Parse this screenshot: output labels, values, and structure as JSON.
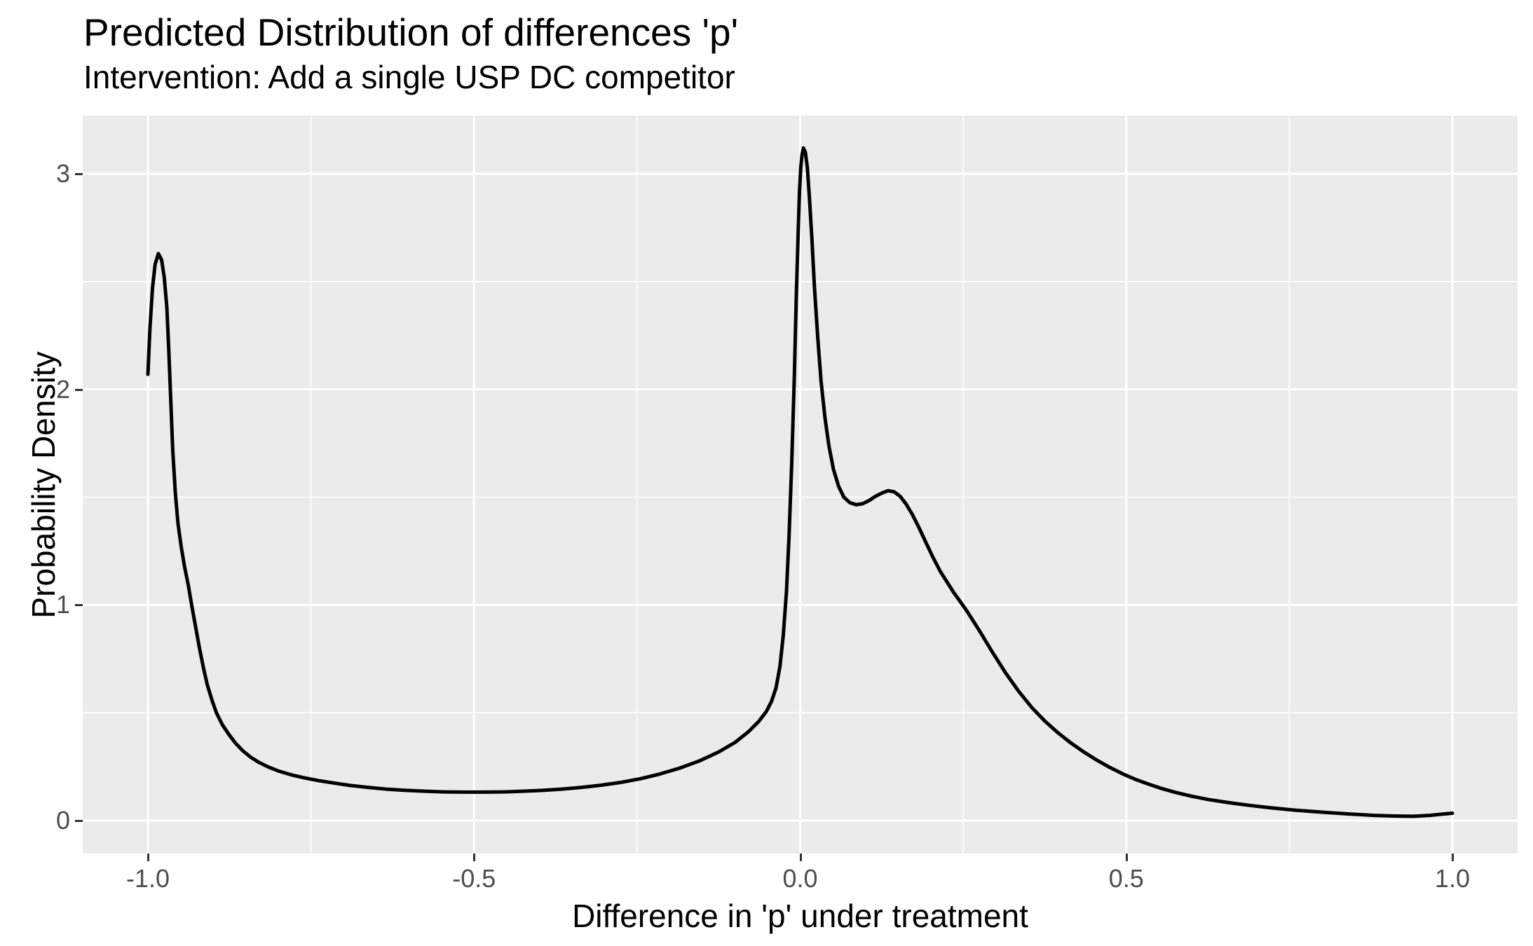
{
  "figure": {
    "title": "Predicted Distribution of differences 'p'",
    "subtitle": "Intervention: Add a single USP DC competitor"
  },
  "chart_data": {
    "type": "line",
    "title": "Predicted Distribution of differences 'p'",
    "subtitle": "Intervention: Add a single USP DC competitor",
    "xlabel": "Difference in 'p' under treatment",
    "ylabel": "Probability Density",
    "xlim": [
      -1.1,
      1.1
    ],
    "ylim": [
      -0.1528,
      3.2698
    ],
    "x_ticks": {
      "values": [
        -1.0,
        -0.5,
        0.0,
        0.5,
        1.0
      ],
      "labels": [
        "-1.0",
        "-0.5",
        "0.0",
        "0.5",
        "1.0"
      ]
    },
    "y_ticks": {
      "values": [
        0,
        1,
        2,
        3
      ],
      "labels": [
        "0",
        "1",
        "2",
        "3"
      ]
    },
    "x_minor_gridlines": [
      -0.75,
      -0.25,
      0.25,
      0.75
    ],
    "y_minor_gridlines": [
      0.5,
      1.5,
      2.5
    ],
    "grid": true,
    "legend_position": "none",
    "colors": {
      "panel_background": "#EBEBEB",
      "gridline": "#FFFFFF",
      "tick_label": "#4D4D4D",
      "tick_mark": "#333333",
      "text": "#000000",
      "curve": "#000000"
    },
    "series": [
      {
        "name": "predicted density of differences in p",
        "color": "#000000",
        "points": [
          [
            -1.0,
            2.07
          ],
          [
            -0.997,
            2.28
          ],
          [
            -0.993,
            2.47
          ],
          [
            -0.989,
            2.58
          ],
          [
            -0.984,
            2.63
          ],
          [
            -0.979,
            2.6
          ],
          [
            -0.975,
            2.52
          ],
          [
            -0.971,
            2.38
          ],
          [
            -0.968,
            2.18
          ],
          [
            -0.965,
            1.95
          ],
          [
            -0.962,
            1.72
          ],
          [
            -0.958,
            1.52
          ],
          [
            -0.954,
            1.38
          ],
          [
            -0.949,
            1.27
          ],
          [
            -0.944,
            1.18
          ],
          [
            -0.938,
            1.09
          ],
          [
            -0.933,
            1.0
          ],
          [
            -0.927,
            0.9
          ],
          [
            -0.921,
            0.8
          ],
          [
            -0.915,
            0.71
          ],
          [
            -0.909,
            0.63
          ],
          [
            -0.902,
            0.56
          ],
          [
            -0.895,
            0.5
          ],
          [
            -0.886,
            0.445
          ],
          [
            -0.876,
            0.4
          ],
          [
            -0.866,
            0.36
          ],
          [
            -0.855,
            0.325
          ],
          [
            -0.843,
            0.295
          ],
          [
            -0.83,
            0.27
          ],
          [
            -0.815,
            0.248
          ],
          [
            -0.8,
            0.23
          ],
          [
            -0.78,
            0.212
          ],
          [
            -0.76,
            0.198
          ],
          [
            -0.738,
            0.185
          ],
          [
            -0.715,
            0.174
          ],
          [
            -0.69,
            0.163
          ],
          [
            -0.663,
            0.154
          ],
          [
            -0.635,
            0.146
          ],
          [
            -0.605,
            0.14
          ],
          [
            -0.575,
            0.136
          ],
          [
            -0.545,
            0.133
          ],
          [
            -0.515,
            0.132
          ],
          [
            -0.485,
            0.132
          ],
          [
            -0.455,
            0.133
          ],
          [
            -0.425,
            0.136
          ],
          [
            -0.395,
            0.14
          ],
          [
            -0.365,
            0.146
          ],
          [
            -0.335,
            0.154
          ],
          [
            -0.305,
            0.164
          ],
          [
            -0.275,
            0.177
          ],
          [
            -0.245,
            0.194
          ],
          [
            -0.215,
            0.216
          ],
          [
            -0.185,
            0.243
          ],
          [
            -0.155,
            0.276
          ],
          [
            -0.125,
            0.318
          ],
          [
            -0.1,
            0.362
          ],
          [
            -0.08,
            0.41
          ],
          [
            -0.064,
            0.458
          ],
          [
            -0.052,
            0.505
          ],
          [
            -0.044,
            0.552
          ],
          [
            -0.037,
            0.615
          ],
          [
            -0.031,
            0.715
          ],
          [
            -0.026,
            0.855
          ],
          [
            -0.021,
            1.06
          ],
          [
            -0.017,
            1.32
          ],
          [
            -0.013,
            1.65
          ],
          [
            -0.009,
            2.05
          ],
          [
            -0.006,
            2.42
          ],
          [
            -0.003,
            2.73
          ],
          [
            -0.001,
            2.92
          ],
          [
            0.001,
            3.03
          ],
          [
            0.003,
            3.09
          ],
          [
            0.005,
            3.12
          ],
          [
            0.008,
            3.1
          ],
          [
            0.011,
            3.03
          ],
          [
            0.014,
            2.9
          ],
          [
            0.018,
            2.7
          ],
          [
            0.022,
            2.47
          ],
          [
            0.027,
            2.24
          ],
          [
            0.032,
            2.04
          ],
          [
            0.038,
            1.87
          ],
          [
            0.044,
            1.74
          ],
          [
            0.051,
            1.63
          ],
          [
            0.059,
            1.55
          ],
          [
            0.067,
            1.5
          ],
          [
            0.076,
            1.475
          ],
          [
            0.086,
            1.465
          ],
          [
            0.096,
            1.47
          ],
          [
            0.106,
            1.485
          ],
          [
            0.116,
            1.505
          ],
          [
            0.126,
            1.52
          ],
          [
            0.135,
            1.53
          ],
          [
            0.144,
            1.525
          ],
          [
            0.153,
            1.505
          ],
          [
            0.162,
            1.47
          ],
          [
            0.172,
            1.42
          ],
          [
            0.182,
            1.36
          ],
          [
            0.192,
            1.295
          ],
          [
            0.203,
            1.225
          ],
          [
            0.215,
            1.155
          ],
          [
            0.235,
            1.06
          ],
          [
            0.255,
            0.975
          ],
          [
            0.275,
            0.88
          ],
          [
            0.295,
            0.78
          ],
          [
            0.315,
            0.685
          ],
          [
            0.335,
            0.6
          ],
          [
            0.355,
            0.525
          ],
          [
            0.375,
            0.462
          ],
          [
            0.395,
            0.408
          ],
          [
            0.415,
            0.36
          ],
          [
            0.435,
            0.318
          ],
          [
            0.455,
            0.28
          ],
          [
            0.475,
            0.246
          ],
          [
            0.495,
            0.216
          ],
          [
            0.515,
            0.19
          ],
          [
            0.535,
            0.168
          ],
          [
            0.555,
            0.148
          ],
          [
            0.575,
            0.131
          ],
          [
            0.6,
            0.113
          ],
          [
            0.625,
            0.098
          ],
          [
            0.655,
            0.084
          ],
          [
            0.69,
            0.07
          ],
          [
            0.725,
            0.058
          ],
          [
            0.76,
            0.048
          ],
          [
            0.8,
            0.039
          ],
          [
            0.84,
            0.031
          ],
          [
            0.88,
            0.024
          ],
          [
            0.91,
            0.021
          ],
          [
            0.94,
            0.02
          ],
          [
            0.965,
            0.024
          ],
          [
            0.985,
            0.03
          ],
          [
            1.0,
            0.034
          ]
        ]
      }
    ]
  }
}
